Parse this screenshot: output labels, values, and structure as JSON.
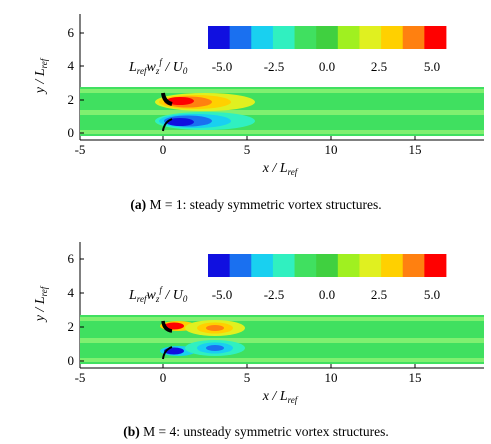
{
  "panels": [
    {
      "id": "a",
      "caption_tag": "(a)",
      "caption_text": "M = 1: steady symmetric vortex structures.",
      "xlabel": "x / L_ref",
      "ylabel": "y / L_ref",
      "colorbar_label": "L_ref w_z^f / U_0",
      "colorbar_ticks": [
        "-5.0",
        "-2.5",
        "0.0",
        "2.5",
        "5.0"
      ],
      "x_ticks": [
        "-5",
        "0",
        "5",
        "10",
        "15"
      ],
      "y_ticks": [
        "0",
        "2",
        "4",
        "6"
      ],
      "x_range": [
        -5,
        19
      ],
      "y_range": [
        -0.2,
        7.2
      ]
    },
    {
      "id": "b",
      "caption_tag": "(b)",
      "caption_text": "M = 4: unsteady symmetric vortex structures.",
      "xlabel": "x / L_ref",
      "ylabel": "y / L_ref",
      "colorbar_label": "L_ref w_z^f / U_0",
      "colorbar_ticks": [
        "-5.0",
        "-2.5",
        "0.0",
        "2.5",
        "5.0"
      ],
      "x_ticks": [
        "-5",
        "0",
        "5",
        "10",
        "15"
      ],
      "y_ticks": [
        "0",
        "2",
        "4",
        "6"
      ],
      "x_range": [
        -5,
        19
      ],
      "y_range": [
        -0.2,
        7.2
      ]
    }
  ],
  "colorbar_colors": [
    "#1010e0",
    "#1a70f0",
    "#19d0f0",
    "#30f0c0",
    "#40e060",
    "#40d040",
    "#a0f020",
    "#e0f020",
    "#ffd000",
    "#ff8010",
    "#ff0000"
  ],
  "field_colors": {
    "light": "#80f070",
    "mid": "#40e060",
    "pos_weak": "#e0f020",
    "pos_mid": "#ffd000",
    "pos_strong": "#ff8010",
    "pos_core": "#ff0000",
    "neg_weak": "#30f0c0",
    "neg_mid": "#19d0f0",
    "neg_strong": "#1a70f0",
    "neg_core": "#1010e0"
  }
}
